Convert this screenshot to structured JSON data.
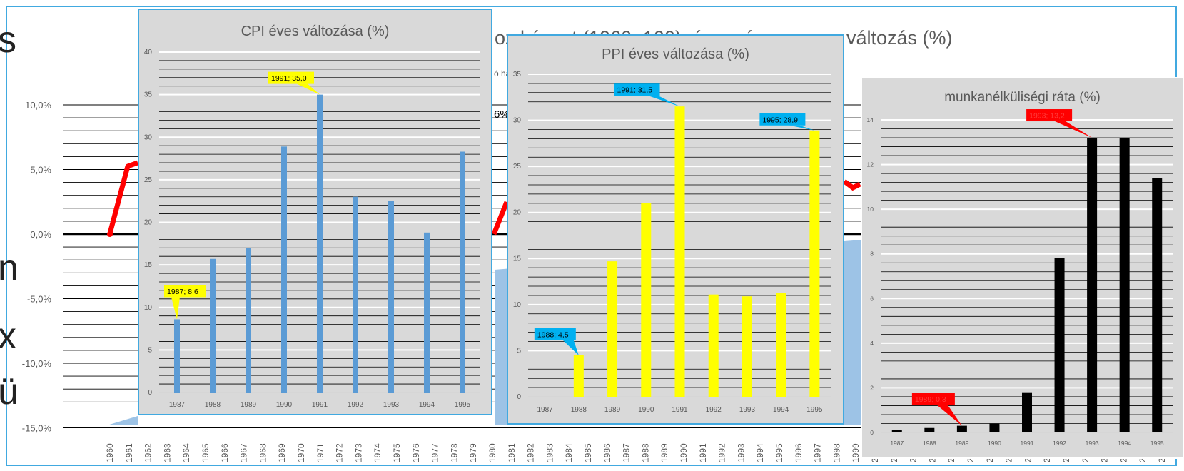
{
  "background_chart": {
    "title_fragment_1": "oz képest (1960=100), és az éves",
    "title_fragment_2": "változás (%)",
    "note_fragment": "ó ha",
    "percent_fragment": "6%",
    "left_edge_letters": [
      "s",
      "n",
      "x",
      "ü"
    ],
    "y_tick_labels": [
      "10,0%",
      "5,0%",
      "0,0%",
      "-5,0%",
      "-10,0%",
      "-15,0%"
    ],
    "year_labels": [
      "1960",
      "1961",
      "1962",
      "1963",
      "1964",
      "1965",
      "1966",
      "1967",
      "1968",
      "1969",
      "1970",
      "1971",
      "1972",
      "1973",
      "1974",
      "1975",
      "1976",
      "1977",
      "1978",
      "1979",
      "1980",
      "1981",
      "1982",
      "1983",
      "1984",
      "1985",
      "1986",
      "1987",
      "1988",
      "1989",
      "1990",
      "1991",
      "1992",
      "1993",
      "1994",
      "1995",
      "1996",
      "1997",
      "1998",
      "1999",
      "2(",
      "2(",
      "2(",
      "2(",
      "2(",
      "2(",
      "2(",
      "2(",
      "2(",
      "2(",
      "2(",
      "2(",
      "2(",
      "2(",
      "2(",
      "2("
    ]
  },
  "chart_data": [
    {
      "type": "bar",
      "title": "CPI éves változása (%)",
      "categories": [
        "1987",
        "1988",
        "1989",
        "1990",
        "1991",
        "1992",
        "1993",
        "1994",
        "1995"
      ],
      "values": [
        8.6,
        15.7,
        17.0,
        28.9,
        35.0,
        23.0,
        22.5,
        18.8,
        28.3
      ],
      "ylim": [
        0,
        40
      ],
      "y_ticks": [
        "0",
        "5",
        "10",
        "15",
        "20",
        "25",
        "30",
        "35",
        "40"
      ],
      "color": "#5b9bd5",
      "label_bg": "#ffff00",
      "annotations": [
        {
          "category": "1987",
          "text": "1987;  8,6"
        },
        {
          "category": "1991",
          "text": "1991;  35,0"
        }
      ]
    },
    {
      "type": "bar",
      "title": "PPI éves változása (%)",
      "categories": [
        "1987",
        "1988",
        "1989",
        "1990",
        "1991",
        "1992",
        "1993",
        "1994",
        "1995"
      ],
      "values": [
        0,
        4.5,
        14.7,
        21.0,
        31.5,
        11.1,
        10.9,
        11.3,
        28.9
      ],
      "ylim": [
        0,
        35
      ],
      "y_ticks": [
        "0",
        "5",
        "10",
        "15",
        "20",
        "25",
        "30",
        "35"
      ],
      "color": "#ffff00",
      "label_bg": "#00b0f0",
      "annotations": [
        {
          "category": "1988",
          "text": "1988;  4,5"
        },
        {
          "category": "1991",
          "text": "1991;  31,5"
        },
        {
          "category": "1995",
          "text": "1995;  28,9"
        }
      ]
    },
    {
      "type": "bar",
      "title": "munkanélküliségi ráta (%)",
      "categories": [
        "1987",
        "1988",
        "1989",
        "1990",
        "1991",
        "1992",
        "1993",
        "1994",
        "1995"
      ],
      "values": [
        0.1,
        0.2,
        0.3,
        0.4,
        1.8,
        7.8,
        13.2,
        13.2,
        11.4
      ],
      "ylim": [
        0,
        14
      ],
      "y_ticks": [
        "0",
        "2",
        "4",
        "6",
        "8",
        "10",
        "12",
        "14"
      ],
      "color": "#000000",
      "label_bg": "#ff0000",
      "annotations": [
        {
          "category": "1989",
          "text": "1989; 0,3"
        },
        {
          "category": "1993",
          "text": "1993; 13,2"
        }
      ]
    }
  ]
}
